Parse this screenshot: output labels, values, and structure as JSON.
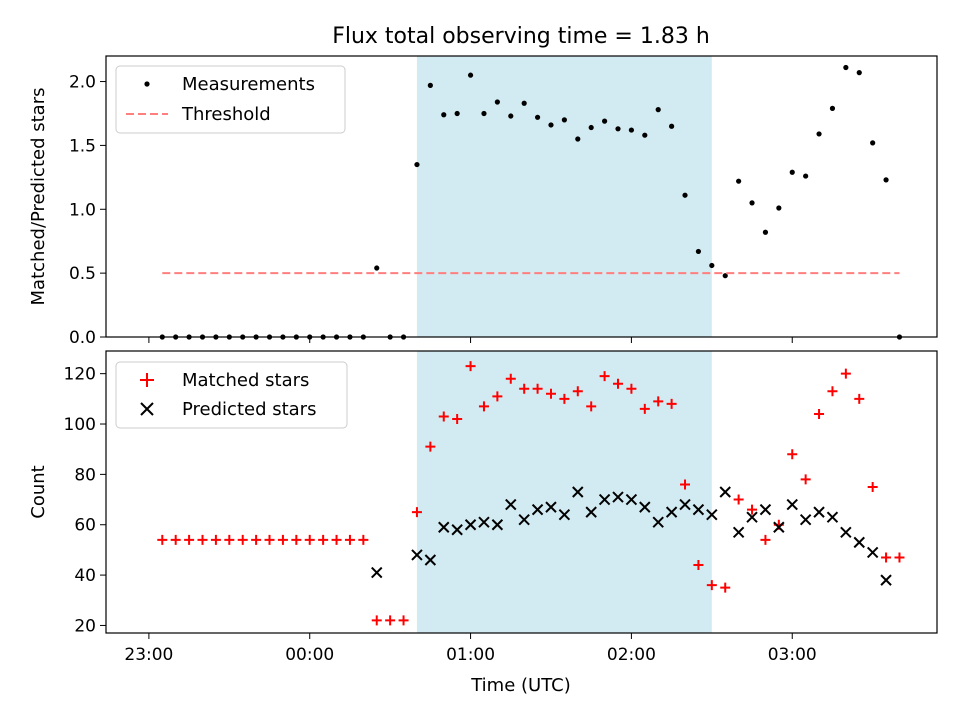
{
  "figure": {
    "title": "Flux total observing time = 1.83 h",
    "xlabel": "Time (UTC)",
    "xticks": [
      {
        "t": -60,
        "label": "23:00"
      },
      {
        "t": 0,
        "label": "00:00"
      },
      {
        "t": 60,
        "label": "01:00"
      },
      {
        "t": 120,
        "label": "02:00"
      },
      {
        "t": 180,
        "label": "03:00"
      }
    ],
    "shaded_window": {
      "start": 40,
      "end": 150,
      "color": "#add8e6"
    }
  },
  "chart_data": [
    {
      "type": "scatter",
      "ylabel": "Matched/Predicted stars",
      "xlim": [
        -76,
        234
      ],
      "ylim": [
        0,
        2.2
      ],
      "yticks": [
        "0.0",
        "0.5",
        "1.0",
        "1.5",
        "2.0"
      ],
      "ytick_values": [
        0,
        0.5,
        1.0,
        1.5,
        2.0
      ],
      "legend_position": "upper-left",
      "series": [
        {
          "name": "Measurements",
          "marker": "dot",
          "color": "#000000",
          "points": [
            [
              -55,
              0
            ],
            [
              -50,
              0
            ],
            [
              -45,
              0
            ],
            [
              -40,
              0
            ],
            [
              -35,
              0
            ],
            [
              -30,
              0
            ],
            [
              -25,
              0
            ],
            [
              -20,
              0
            ],
            [
              -15,
              0
            ],
            [
              -10,
              0
            ],
            [
              -5,
              0
            ],
            [
              0,
              0
            ],
            [
              5,
              0
            ],
            [
              10,
              0
            ],
            [
              15,
              0
            ],
            [
              20,
              0
            ],
            [
              25,
              0.54
            ],
            [
              30,
              0
            ],
            [
              35,
              0
            ],
            [
              40,
              1.35
            ],
            [
              45,
              1.97
            ],
            [
              50,
              1.74
            ],
            [
              55,
              1.75
            ],
            [
              60,
              2.05
            ],
            [
              65,
              1.75
            ],
            [
              70,
              1.84
            ],
            [
              75,
              1.73
            ],
            [
              80,
              1.83
            ],
            [
              85,
              1.72
            ],
            [
              90,
              1.66
            ],
            [
              95,
              1.7
            ],
            [
              100,
              1.55
            ],
            [
              105,
              1.64
            ],
            [
              110,
              1.69
            ],
            [
              115,
              1.63
            ],
            [
              120,
              1.62
            ],
            [
              125,
              1.58
            ],
            [
              130,
              1.78
            ],
            [
              135,
              1.65
            ],
            [
              140,
              1.11
            ],
            [
              145,
              0.67
            ],
            [
              150,
              0.56
            ],
            [
              155,
              0.48
            ],
            [
              160,
              1.22
            ],
            [
              165,
              1.05
            ],
            [
              170,
              0.82
            ],
            [
              175,
              1.01
            ],
            [
              180,
              1.29
            ],
            [
              185,
              1.26
            ],
            [
              190,
              1.59
            ],
            [
              195,
              1.79
            ],
            [
              200,
              2.11
            ],
            [
              205,
              2.07
            ],
            [
              210,
              1.52
            ],
            [
              215,
              1.23
            ],
            [
              220,
              0
            ]
          ]
        },
        {
          "name": "Threshold",
          "style": "dashed",
          "color": "#ff7f7f",
          "x": [
            -55,
            220
          ],
          "y": [
            0.5,
            0.5
          ]
        }
      ]
    },
    {
      "type": "scatter",
      "ylabel": "Count",
      "xlim": [
        -76,
        234
      ],
      "ylim": [
        17,
        129
      ],
      "yticks": [
        "20",
        "40",
        "60",
        "80",
        "100",
        "120"
      ],
      "ytick_values": [
        20,
        40,
        60,
        80,
        100,
        120
      ],
      "legend_position": "upper-left",
      "series": [
        {
          "name": "Matched stars",
          "marker": "plus",
          "color": "#ff0000",
          "points": [
            [
              -55,
              54
            ],
            [
              -50,
              54
            ],
            [
              -45,
              54
            ],
            [
              -40,
              54
            ],
            [
              -35,
              54
            ],
            [
              -30,
              54
            ],
            [
              -25,
              54
            ],
            [
              -20,
              54
            ],
            [
              -15,
              54
            ],
            [
              -10,
              54
            ],
            [
              -5,
              54
            ],
            [
              0,
              54
            ],
            [
              5,
              54
            ],
            [
              10,
              54
            ],
            [
              15,
              54
            ],
            [
              20,
              54
            ],
            [
              25,
              22
            ],
            [
              30,
              22
            ],
            [
              35,
              22
            ],
            [
              40,
              65
            ],
            [
              45,
              91
            ],
            [
              50,
              103
            ],
            [
              55,
              102
            ],
            [
              60,
              123
            ],
            [
              65,
              107
            ],
            [
              70,
              111
            ],
            [
              75,
              118
            ],
            [
              80,
              114
            ],
            [
              85,
              114
            ],
            [
              90,
              112
            ],
            [
              95,
              110
            ],
            [
              100,
              113
            ],
            [
              105,
              107
            ],
            [
              110,
              119
            ],
            [
              115,
              116
            ],
            [
              120,
              114
            ],
            [
              125,
              106
            ],
            [
              130,
              109
            ],
            [
              135,
              108
            ],
            [
              140,
              76
            ],
            [
              145,
              44
            ],
            [
              150,
              36
            ],
            [
              155,
              35
            ],
            [
              160,
              70
            ],
            [
              165,
              66
            ],
            [
              170,
              54
            ],
            [
              175,
              60
            ],
            [
              180,
              88
            ],
            [
              185,
              78
            ],
            [
              190,
              104
            ],
            [
              195,
              113
            ],
            [
              200,
              120
            ],
            [
              205,
              110
            ],
            [
              210,
              75
            ],
            [
              215,
              47
            ],
            [
              220,
              47
            ]
          ]
        },
        {
          "name": "Predicted stars",
          "marker": "x",
          "color": "#000000",
          "points": [
            [
              25,
              41
            ],
            [
              40,
              48
            ],
            [
              45,
              46
            ],
            [
              50,
              59
            ],
            [
              55,
              58
            ],
            [
              60,
              60
            ],
            [
              65,
              61
            ],
            [
              70,
              60
            ],
            [
              75,
              68
            ],
            [
              80,
              62
            ],
            [
              85,
              66
            ],
            [
              90,
              67
            ],
            [
              95,
              64
            ],
            [
              100,
              73
            ],
            [
              105,
              65
            ],
            [
              110,
              70
            ],
            [
              115,
              71
            ],
            [
              120,
              70
            ],
            [
              125,
              67
            ],
            [
              130,
              61
            ],
            [
              135,
              65
            ],
            [
              140,
              68
            ],
            [
              145,
              66
            ],
            [
              150,
              64
            ],
            [
              155,
              73
            ],
            [
              160,
              57
            ],
            [
              165,
              63
            ],
            [
              170,
              66
            ],
            [
              175,
              59
            ],
            [
              180,
              68
            ],
            [
              185,
              62
            ],
            [
              190,
              65
            ],
            [
              195,
              63
            ],
            [
              200,
              57
            ],
            [
              205,
              53
            ],
            [
              210,
              49
            ],
            [
              215,
              38
            ]
          ]
        }
      ]
    }
  ]
}
